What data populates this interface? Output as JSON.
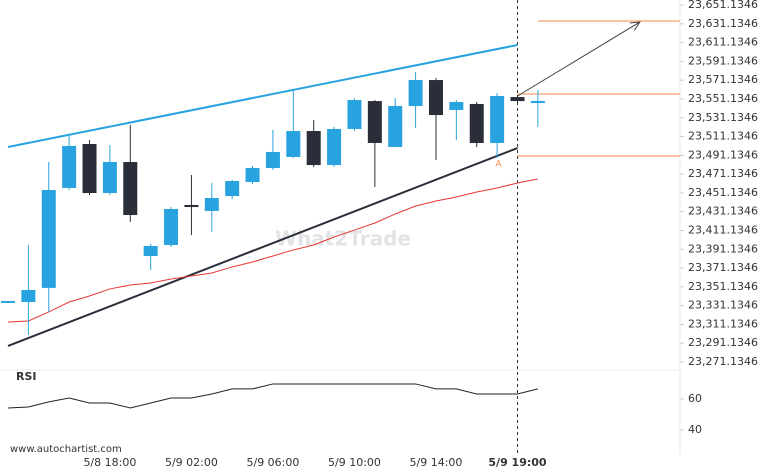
{
  "chart_data": {
    "type": "candlestick",
    "watermark": "What2Trade",
    "source": "www.autochartist.com",
    "pattern_label": "A",
    "categories": [
      null,
      null,
      null,
      null,
      null,
      "5/8 18:00",
      null,
      null,
      null,
      "5/9 02:00",
      null,
      null,
      null,
      "5/9 06:00",
      null,
      null,
      null,
      "5/9 10:00",
      null,
      null,
      null,
      "5/9 14:00",
      null,
      null,
      null,
      "5/9 19:00",
      null
    ],
    "open": [
      23336.1,
      23335.0,
      23350.0,
      23456.4,
      23503.2,
      23451.0,
      23484.0,
      23384.0,
      23395.7,
      23438.3,
      23431.9,
      23447.8,
      23462.7,
      23477.6,
      23489.4,
      23517.0,
      23480.8,
      23519.2,
      23548.9,
      23500.0,
      23543.6,
      23571.3,
      23539.4,
      23545.8,
      23504.3,
      23553.2,
      23546.8
    ],
    "high": [
      23336.1,
      23395.7,
      23484.0,
      23512.8,
      23507.4,
      23502.1,
      23523.4,
      23396.8,
      23436.1,
      23470.2,
      23461.7,
      23464.9,
      23479.8,
      23518.1,
      23560.7,
      23528.7,
      23521.3,
      23552.1,
      23550.0,
      23552.1,
      23579.8,
      23573.4,
      23550.0,
      23547.9,
      23557.5,
      23555.3,
      23560.7
    ],
    "low": [
      23336.1,
      23299.9,
      23324.4,
      23454.2,
      23448.9,
      23448.9,
      23420.2,
      23369.1,
      23393.6,
      23406.3,
      23409.5,
      23444.6,
      23460.6,
      23475.5,
      23488.3,
      23478.7,
      23478.7,
      23517.0,
      23457.4,
      23500.0,
      23520.2,
      23486.2,
      23507.4,
      23500.0,
      23488.3,
      23546.8,
      23521.3
    ],
    "close": [
      23336.1,
      23347.8,
      23454.2,
      23501.1,
      23451.0,
      23484.0,
      23427.6,
      23394.6,
      23434.0,
      23436.1,
      23445.7,
      23463.8,
      23477.6,
      23494.7,
      23517.0,
      23480.8,
      23519.2,
      23550.0,
      23504.3,
      23543.6,
      23571.3,
      23534.0,
      23547.9,
      23504.3,
      23554.3,
      23548.9,
      23549.0
    ],
    "up_color": "#29a3df",
    "down_color": "#2a2e39",
    "moving_average": {
      "color": "#e53935",
      "values": [
        23313.7,
        23314.8,
        23324.4,
        23335.0,
        23341.4,
        23348.9,
        23353.1,
        23355.2,
        23359.5,
        23362.7,
        23365.9,
        23372.3,
        23377.6,
        23384.0,
        23390.4,
        23395.7,
        23404.2,
        23411.6,
        23419.1,
        23428.7,
        23437.2,
        23442.5,
        23446.8,
        23452.1,
        23456.4,
        23461.7,
        23465.9
      ]
    },
    "trendlines": [
      {
        "color": "#29a3df",
        "x": [
          0,
          25
        ],
        "values": [
          23500.0,
          23608.6
        ]
      },
      {
        "color": "#2a2e39",
        "x": [
          0,
          25
        ],
        "values": [
          23288.2,
          23498.9
        ]
      }
    ],
    "forecast_arrow": {
      "color": "#444444",
      "x": [
        25,
        31
      ],
      "values": [
        23554.3,
        23633.0
      ]
    },
    "levels": {
      "color": "#f08a4b",
      "values": [
        23634.1,
        23556.4,
        23490.4
      ],
      "start": [
        26,
        25,
        25
      ]
    },
    "ylim": [
      23262.6,
      23656.5
    ],
    "yticks": [
      {
        "value": 23271.1346,
        "label": "23,271.1346"
      },
      {
        "value": 23291.1346,
        "label": "23,291.1346"
      },
      {
        "value": 23311.1346,
        "label": "23,311.1346"
      },
      {
        "value": 23331.1346,
        "label": "23,331.1346"
      },
      {
        "value": 23351.1346,
        "label": "23,351.1346"
      },
      {
        "value": 23371.1346,
        "label": "23,371.1346"
      },
      {
        "value": 23391.1346,
        "label": "23,391.1346"
      },
      {
        "value": 23411.1346,
        "label": "23,411.1346"
      },
      {
        "value": 23431.1346,
        "label": "23,431.1346"
      },
      {
        "value": 23451.1346,
        "label": "23,451.1346"
      },
      {
        "value": 23471.1346,
        "label": "23,471.1346"
      },
      {
        "value": 23491.1346,
        "label": "23,491.1346"
      },
      {
        "value": 23511.1346,
        "label": "23,511.1346"
      },
      {
        "value": 23531.1346,
        "label": "23,531.1346"
      },
      {
        "value": 23551.1346,
        "label": "23,551.1346"
      },
      {
        "value": 23571.1346,
        "label": "23,571.1346"
      },
      {
        "value": 23591.1346,
        "label": "23,591.1346"
      },
      {
        "value": 23611.1346,
        "label": "23,611.1346"
      },
      {
        "value": 23631.1346,
        "label": "23,631.1346"
      },
      {
        "value": 23651.1346,
        "label": "23,651.1346"
      }
    ],
    "rsi": {
      "title": "RSI",
      "color": "#222222",
      "values": [
        54.2,
        54.8,
        58.1,
        60.6,
        57.4,
        57.4,
        54.2,
        57.4,
        60.6,
        60.6,
        63.2,
        66.5,
        66.5,
        69.7,
        69.7,
        69.7,
        69.7,
        69.7,
        69.7,
        69.7,
        69.7,
        66.5,
        66.5,
        63.2,
        63.2,
        63.2,
        66.5
      ],
      "ylim": [
        30.3,
        78.7
      ],
      "yticks": [
        40,
        60
      ]
    }
  }
}
